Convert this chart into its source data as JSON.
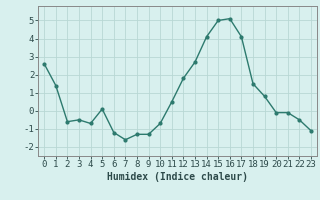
{
  "x": [
    0,
    1,
    2,
    3,
    4,
    5,
    6,
    7,
    8,
    9,
    10,
    11,
    12,
    13,
    14,
    15,
    16,
    17,
    18,
    19,
    20,
    21,
    22,
    23
  ],
  "y": [
    2.6,
    1.4,
    -0.6,
    -0.5,
    -0.7,
    0.1,
    -1.2,
    -1.6,
    -1.3,
    -1.3,
    -0.7,
    0.5,
    1.8,
    2.7,
    4.1,
    5.0,
    5.1,
    4.1,
    1.5,
    0.8,
    -0.1,
    -0.1,
    -0.5,
    -1.1
  ],
  "line_color": "#2d7a6e",
  "marker": "o",
  "marker_size": 2,
  "line_width": 1.0,
  "bg_color": "#d8f0ee",
  "grid_color": "#b8d8d4",
  "xlabel": "Humidex (Indice chaleur)",
  "xlim": [
    -0.5,
    23.5
  ],
  "ylim": [
    -2.5,
    5.8
  ],
  "yticks": [
    -2,
    -1,
    0,
    1,
    2,
    3,
    4,
    5
  ],
  "xticks": [
    0,
    1,
    2,
    3,
    4,
    5,
    6,
    7,
    8,
    9,
    10,
    11,
    12,
    13,
    14,
    15,
    16,
    17,
    18,
    19,
    20,
    21,
    22,
    23
  ],
  "xlabel_fontsize": 7,
  "tick_fontsize": 6.5
}
